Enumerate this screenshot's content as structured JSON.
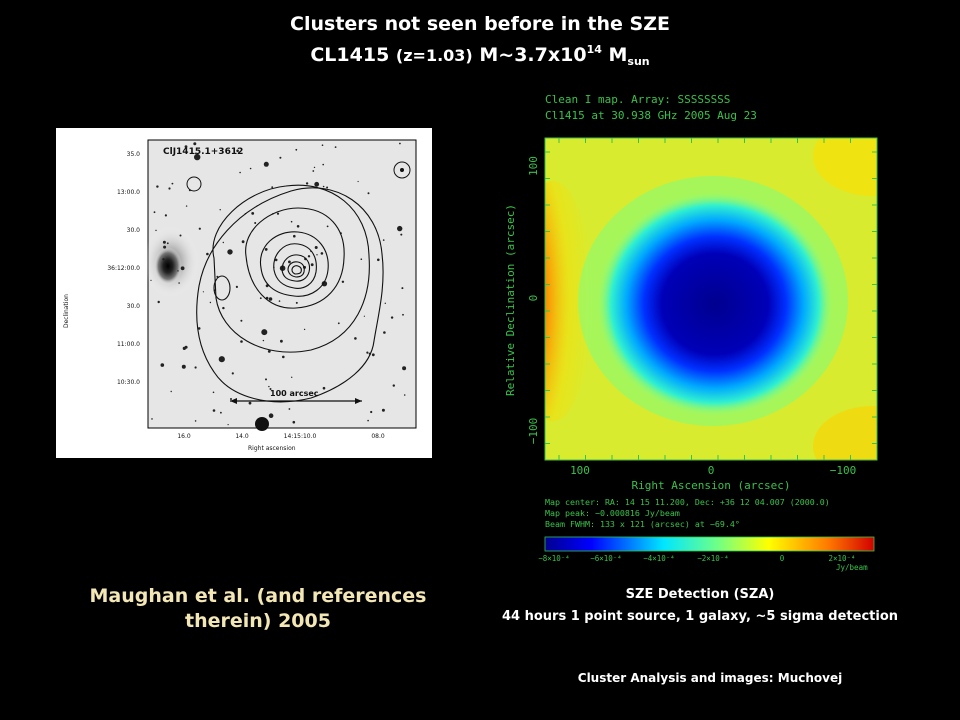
{
  "slide": {
    "title_line1": "Clusters not seen before in the SZE",
    "title_line2": {
      "name": "CL1415",
      "redshift_text": "(z=1.03)",
      "mass_prefix": "M~3.7x10",
      "mass_exponent": "14",
      "mass_unit": "M",
      "mass_unit_sub": "sun"
    },
    "citation_line1": "Maughan et al. (and references",
    "citation_line2": "therein) 2005",
    "sze_caption_line1": "SZE Detection (SZA)",
    "sze_caption_line2": "44 hours 1 point source, 1 galaxy, ~5 sigma detection",
    "credit": "Cluster Analysis and images: Muchovej"
  },
  "optical_image": {
    "label": "ClJ1415.1+3612",
    "y_axis_label": "Declination",
    "x_axis_label": "Right ascension",
    "y_ticks": [
      "35.0",
      "13:00.0",
      "30.0",
      "36:12:00.0",
      "30.0",
      "11:00.0",
      "10:30.0"
    ],
    "x_ticks": [
      "16.0",
      "14.0",
      "14:15:10.0",
      "08.0"
    ],
    "scale_bar_label": "100 arcsec"
  },
  "sze_map": {
    "header_line1": "Clean I map.  Array:  SSSSSSSS",
    "header_line2": "Cl1415 at 30.938 GHz 2005 Aug 23",
    "y_axis_label": "Relative Declination  (arcsec)",
    "x_axis_label": "Right Ascension   (arcsec)",
    "y_ticks": [
      "100",
      "0",
      "−100"
    ],
    "x_ticks": [
      "100",
      "0",
      "−100"
    ],
    "info_line1": "Map center:  RA: 14 15 11.200,  Dec: +36 12 04.007 (2000.0)",
    "info_line2": "Map peak:  −0.000816 Jy/beam",
    "info_line3": "Beam FWHM:  133 x 121 (arcsec) at −69.4°",
    "colorbar_ticks": [
      "−8×10⁻⁴",
      "−6×10⁻⁴",
      "−4×10⁻⁴",
      "−2×10⁻⁴",
      "0",
      "2×10⁻⁴"
    ],
    "colorbar_unit": "Jy/beam",
    "colors": {
      "text": "#39c24a",
      "map_low": "#00008f",
      "map_high": "#ff2a00"
    }
  }
}
